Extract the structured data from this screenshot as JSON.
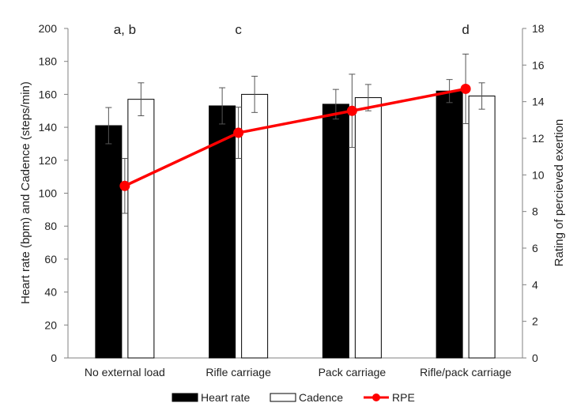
{
  "chart_data": {
    "type": "bar",
    "categories": [
      "No external load",
      "Rifle carriage",
      "Pack carriage",
      "Rifle/pack carriage"
    ],
    "significance_labels": [
      "a, b",
      "c",
      "",
      "d"
    ],
    "series": [
      {
        "name": "Heart rate",
        "kind": "bar",
        "axis": "left",
        "fill": "#000000",
        "values": [
          141,
          153,
          154,
          162
        ],
        "errors": [
          11,
          11,
          9,
          7
        ]
      },
      {
        "name": "Cadence",
        "kind": "bar",
        "axis": "left",
        "fill": "#ffffff",
        "values": [
          157,
          160,
          158,
          159
        ],
        "errors": [
          10,
          11,
          8,
          8
        ]
      },
      {
        "name": "RPE",
        "kind": "line",
        "axis": "right",
        "color": "#ff0000",
        "values": [
          9.4,
          12.3,
          13.5,
          14.7
        ],
        "errors": [
          1.5,
          1.4,
          2.0,
          1.9
        ]
      }
    ],
    "left_axis": {
      "label": "Heart rate (bpm) and Cadence (steps/min)",
      "min": 0,
      "max": 200,
      "step": 20,
      "ticks": [
        "0",
        "20",
        "40",
        "60",
        "80",
        "100",
        "120",
        "140",
        "160",
        "180",
        "200"
      ]
    },
    "right_axis": {
      "label": "Rating of percieved exertion",
      "min": 0,
      "max": 18,
      "step": 2,
      "ticks": [
        "0",
        "2",
        "4",
        "6",
        "8",
        "10",
        "12",
        "14",
        "16",
        "18"
      ]
    },
    "legend": {
      "position": "bottom",
      "items": [
        "Heart rate",
        "Cadence",
        "RPE"
      ]
    },
    "grid": false
  }
}
